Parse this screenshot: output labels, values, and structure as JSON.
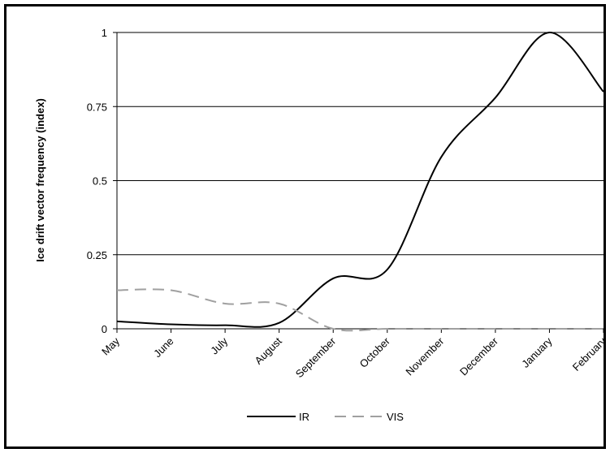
{
  "chart_data": {
    "type": "line",
    "ylabel": "Ice drift vector frequency (index)",
    "ylim": [
      0,
      1
    ],
    "yticks": [
      "0",
      "0.25",
      "0.5",
      "0.75",
      "1"
    ],
    "grid": true,
    "legend_position": "bottom",
    "categories": [
      "May",
      "June",
      "July",
      "August",
      "September",
      "October",
      "November",
      "December",
      "January",
      "February"
    ],
    "series": [
      {
        "name": "IR",
        "color": "#000000",
        "dash": "solid",
        "values": [
          0.025,
          0.015,
          0.012,
          0.02,
          0.17,
          0.2,
          0.58,
          0.78,
          1.0,
          0.8
        ]
      },
      {
        "name": "VIS",
        "color": "#a0a0a0",
        "dash": "dashed",
        "values": [
          0.13,
          0.13,
          0.085,
          0.085,
          0.0,
          0.0,
          0.0,
          0.0,
          0.0,
          0.0
        ]
      }
    ]
  }
}
